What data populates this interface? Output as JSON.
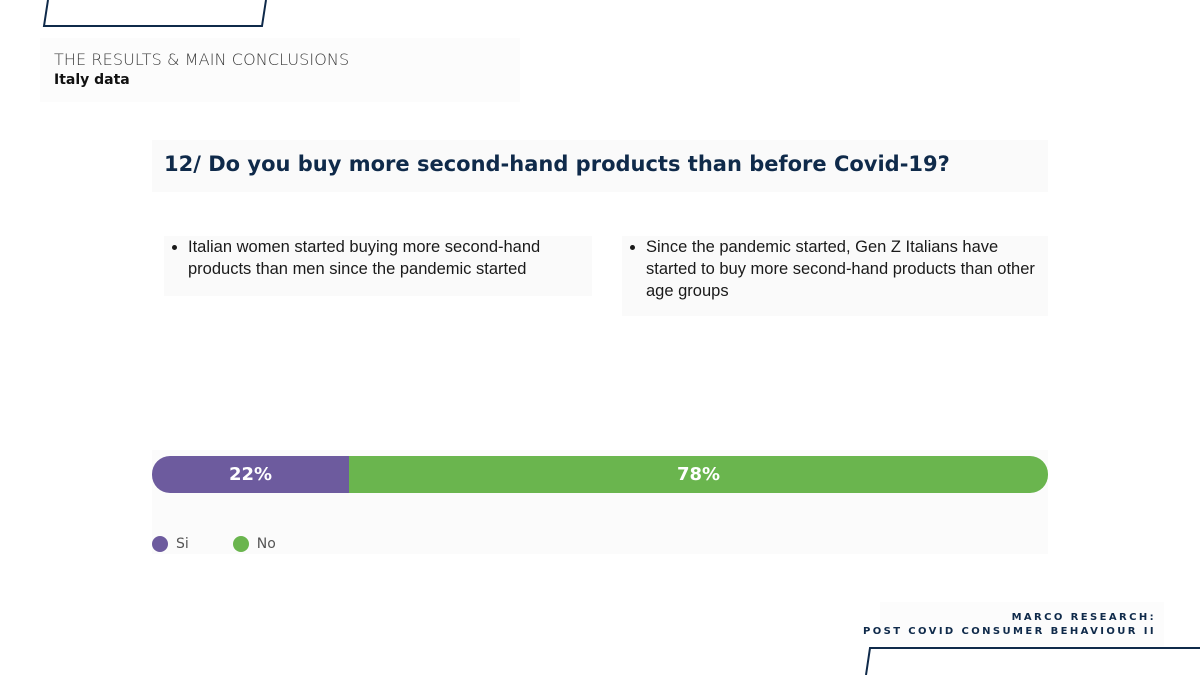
{
  "header": {
    "kicker": "THE RESULTS & MAIN CONCLUSIONS",
    "sub": "Italy data"
  },
  "question": "12/ Do you buy more second-hand products than before Covid-19?",
  "bullets": [
    {
      "text": "Italian women started buying more second-hand products than men since the pandemic started"
    },
    {
      "text": "Since the pandemic started, Gen Z Italians have started to buy more second-hand products than other age groups"
    }
  ],
  "chart_data": {
    "type": "bar",
    "orientation": "horizontal-stacked-100",
    "categories": [
      ""
    ],
    "series": [
      {
        "name": "Si",
        "values": [
          22
        ],
        "label": "22%",
        "color": "#6d5b9e"
      },
      {
        "name": "No",
        "values": [
          78
        ],
        "label": "78%",
        "color": "#6ab54e"
      }
    ],
    "legend_position": "bottom-left",
    "grid": false
  },
  "footer": {
    "line1": "MARCO RESEARCH:",
    "line2": "POST COVID CONSUMER BEHAVIOUR II"
  },
  "colors": {
    "navy": "#0f2a4a",
    "purple": "#6d5b9e",
    "green": "#6ab54e"
  }
}
